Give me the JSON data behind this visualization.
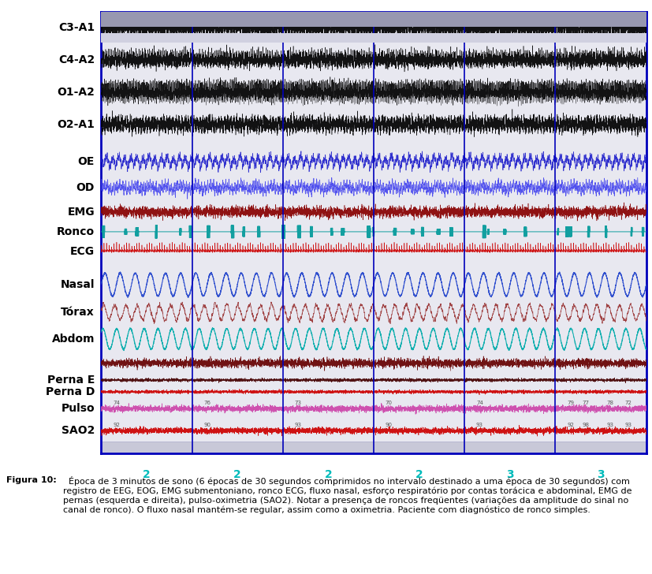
{
  "figure_caption_bold": "Figura 10:",
  "figure_caption_rest": "  Época de 3 minutos de sono (6 épocas de 30 segundos comprimidos no intervalo destinado a uma época de 30 segundos) com registro de EEG, EOG, EMG submentoniano, ronco ECG, fluxo nasal, esforço respiratório por contas torácica e abdominal, EMG de pernas (esquerda e direita), pulso-oximetria (SAO2). Notar a presença de roncos freqüentes (variações da amplitude do sinal no canal de ronco). O fluxo nasal mantém-se regular, assim como a oximetria. Paciente com diagnóstico de ronco simples.",
  "channel_labels": [
    "C3-A1",
    "C4-A2",
    "O1-A2",
    "O2-A1",
    "",
    "OE",
    "OD",
    "EMG",
    "Ronco",
    "ECG",
    "",
    "Nasal",
    "Tórax",
    "Abdom",
    "",
    "Perna E",
    "Perna D",
    "Pulso",
    "SAO2"
  ],
  "channel_colors": [
    "#000000",
    "#000000",
    "#000000",
    "#000000",
    null,
    "#2222cc",
    "#4444ee",
    "#880000",
    "#009999",
    "#cc0000",
    null,
    "#2244cc",
    "#993333",
    "#00aaaa",
    "#660000",
    "#440000",
    "#cc0000",
    "#cc44aa",
    "#cc0000"
  ],
  "bg_color": "#ffffff",
  "plot_bg": "#e8e8f0",
  "plot_border": "#0000bb",
  "scrollbar_bg": "#c8c8d8",
  "epoch_labels": [
    "2",
    "2",
    "2",
    "2",
    "3",
    "3"
  ],
  "epoch_color": "#00bbbb",
  "vertical_line_color": "#0000bb",
  "n_samples": 6000,
  "duration": 180,
  "figsize": [
    8.28,
    7.28
  ],
  "dpi": 100,
  "label_fontsize": 10,
  "epoch_fontsize": 10,
  "caption_fontsize": 8.0
}
